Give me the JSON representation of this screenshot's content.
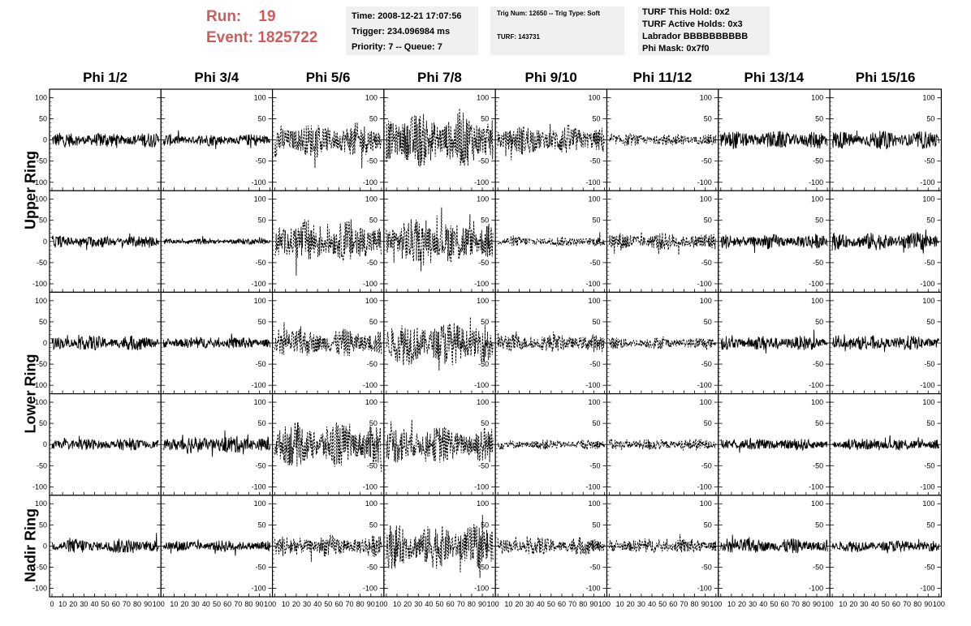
{
  "header": {
    "run_label": "Run:",
    "run_value": "19",
    "event_label": "Event:",
    "event_value": "1825722",
    "time_box": [
      "Time: 2008-12-21 17:07:56",
      "Trigger: 234.096984 ms",
      "Priority: 7 -- Queue: 7"
    ],
    "trig_box": [
      "Trig Num: 12650 -- Trig Type: Soft",
      "TURF: 143731"
    ],
    "turf_box": [
      "TURF This Hold: 0x2",
      "TURF Active Holds: 0x3",
      "Labrador BBBBBBBBBB",
      "Phi Mask: 0x7f0"
    ]
  },
  "colors": {
    "run_text": "#cd5c5c",
    "box_bg": "#f0f0f0",
    "trace": "#000000"
  },
  "chart_data": {
    "type": "line",
    "layout": "grid",
    "columns": [
      "Phi 1/2",
      "Phi 3/4",
      "Phi 5/6",
      "Phi 7/8",
      "Phi 9/10",
      "Phi 11/12",
      "Phi 13/14",
      "Phi 15/16"
    ],
    "rows": [
      "Upper Ring",
      "Upper Ring",
      "Lower Ring",
      "Lower Ring",
      "Nadir Ring"
    ],
    "row_labels": [
      {
        "text": "Upper Ring",
        "rows": [
          0,
          1
        ]
      },
      {
        "text": "Lower Ring",
        "rows": [
          2,
          3
        ]
      },
      {
        "text": "Nadir Ring",
        "rows": [
          4
        ]
      }
    ],
    "xlim": [
      0,
      100
    ],
    "ylim": [
      -120,
      120
    ],
    "xticks": [
      0,
      10,
      20,
      30,
      40,
      50,
      60,
      70,
      80,
      90,
      100
    ],
    "xtick_labels": [
      "0",
      "10",
      "20",
      "30",
      "40",
      "50",
      "60",
      "70",
      "80",
      "90",
      "100"
    ],
    "yticks": [
      -100,
      -50,
      0,
      50,
      100
    ],
    "ytick_labels": [
      "-100",
      "-50",
      "0",
      "50",
      "100"
    ],
    "samples_per_trace": 256,
    "dashed_columns": [
      2,
      3,
      4,
      5
    ],
    "amplitude": [
      [
        15,
        12,
        35,
        55,
        30,
        12,
        18,
        18
      ],
      [
        12,
        6,
        45,
        45,
        10,
        18,
        15,
        18
      ],
      [
        15,
        12,
        28,
        45,
        18,
        12,
        15,
        15
      ],
      [
        12,
        18,
        45,
        38,
        10,
        12,
        12,
        12
      ],
      [
        15,
        12,
        22,
        45,
        18,
        15,
        15,
        12
      ]
    ]
  }
}
